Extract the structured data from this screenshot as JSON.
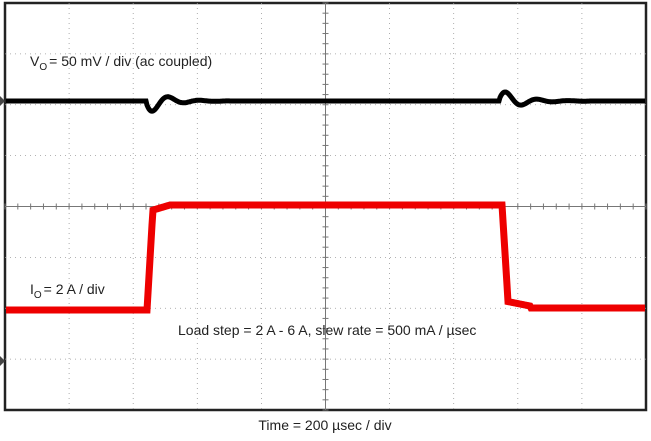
{
  "chart_data": {
    "type": "scope",
    "annotations": [
      {
        "main": "V",
        "sub": "O",
        "rest": "= 50 mV / div (ac coupled)"
      },
      {
        "main": "I",
        "sub": "O",
        "rest": "= 2 A / div"
      },
      {
        "text": "Load step = 2 A - 6 A, slew rate = 500 mA / µsec"
      }
    ],
    "xlabel": "Time = 200 µsec / div",
    "grid": true
  }
}
